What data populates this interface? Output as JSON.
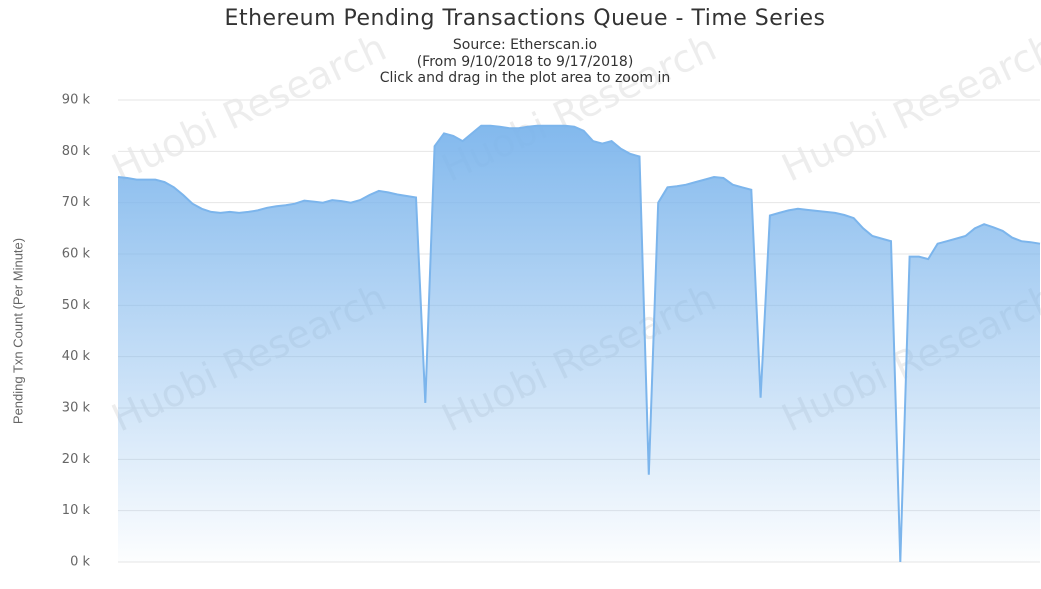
{
  "chart_data": {
    "type": "area",
    "title": "Ethereum Pending Transactions Queue - Time Series",
    "subtitle": [
      "Source: Etherscan.io",
      "(From 9/10/2018 to 9/17/2018)",
      "Click and drag in the plot area to zoom in"
    ],
    "y_label": "Pending Txn Count (Per Minute)",
    "watermark": "Huobi Research",
    "ylim": [
      0,
      90000
    ],
    "yticks": [
      {
        "value": 0,
        "label": "0 k"
      },
      {
        "value": 10000,
        "label": "10 k"
      },
      {
        "value": 20000,
        "label": "20 k"
      },
      {
        "value": 30000,
        "label": "30 k"
      },
      {
        "value": 40000,
        "label": "40 k"
      },
      {
        "value": 50000,
        "label": "50 k"
      },
      {
        "value": 60000,
        "label": "60 k"
      },
      {
        "value": 70000,
        "label": "70 k"
      },
      {
        "value": 80000,
        "label": "80 k"
      },
      {
        "value": 90000,
        "label": "90 k"
      }
    ],
    "grid": true,
    "series": [
      {
        "color": "#7cb5ec",
        "values": [
          75000,
          74800,
          74500,
          74500,
          74500,
          74000,
          73000,
          71500,
          69800,
          68800,
          68200,
          68000,
          68200,
          68000,
          68200,
          68500,
          69000,
          69300,
          69500,
          69800,
          70400,
          70200,
          70000,
          70500,
          70300,
          70000,
          70500,
          71500,
          72300,
          72000,
          71600,
          71300,
          71000,
          31000,
          81000,
          83500,
          83000,
          82000,
          83500,
          85000,
          85000,
          84800,
          84500,
          84500,
          84800,
          85000,
          85000,
          85000,
          85000,
          84800,
          84000,
          82000,
          81500,
          82000,
          80500,
          79500,
          79000,
          17000,
          70000,
          73000,
          73200,
          73500,
          74000,
          74500,
          75000,
          74800,
          73500,
          73000,
          72500,
          32000,
          67500,
          68000,
          68500,
          68800,
          68600,
          68400,
          68200,
          68000,
          67600,
          67000,
          65000,
          63500,
          63000,
          62500,
          0,
          59500,
          59500,
          59000,
          62000,
          62500,
          63000,
          63500,
          65000,
          65800,
          65200,
          64500,
          63200,
          62500,
          62300,
          62000
        ]
      }
    ]
  }
}
